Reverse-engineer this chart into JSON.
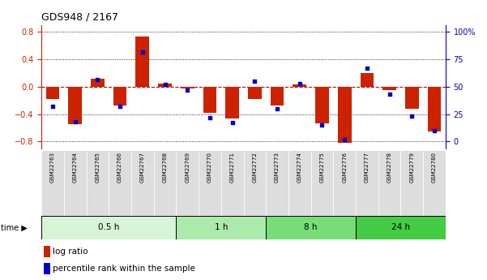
{
  "title": "GDS948 / 2167",
  "samples": [
    "GSM22763",
    "GSM22764",
    "GSM22765",
    "GSM22766",
    "GSM22767",
    "GSM22768",
    "GSM22769",
    "GSM22770",
    "GSM22771",
    "GSM22772",
    "GSM22773",
    "GSM22774",
    "GSM22775",
    "GSM22776",
    "GSM22777",
    "GSM22778",
    "GSM22779",
    "GSM22780"
  ],
  "log_ratio": [
    -0.18,
    -0.55,
    0.12,
    -0.27,
    0.73,
    0.05,
    -0.03,
    -0.38,
    -0.46,
    -0.18,
    -0.27,
    0.03,
    -0.53,
    -0.82,
    0.2,
    -0.05,
    -0.32,
    -0.65
  ],
  "percentile": [
    32,
    18,
    57,
    32,
    82,
    52,
    47,
    22,
    17,
    55,
    30,
    53,
    15,
    2,
    67,
    43,
    23,
    10
  ],
  "groups": [
    {
      "label": "0.5 h",
      "start": 0,
      "end": 6,
      "color": "#d6f5d6"
    },
    {
      "label": "1 h",
      "start": 6,
      "end": 10,
      "color": "#aaeaaa"
    },
    {
      "label": "8 h",
      "start": 10,
      "end": 14,
      "color": "#77dd77"
    },
    {
      "label": "24 h",
      "start": 14,
      "end": 18,
      "color": "#44cc44"
    }
  ],
  "bar_color": "#cc2200",
  "dot_color": "#0000cc",
  "ylim": [
    -0.9,
    0.9
  ],
  "yticks_left": [
    -0.8,
    -0.4,
    0.0,
    0.4,
    0.8
  ],
  "yticks_right": [
    0,
    25,
    50,
    75,
    100
  ],
  "hline_color": "#cc0000",
  "dot_grid_color": "#333333",
  "sample_box_color": "#dddddd",
  "background_color": "#ffffff"
}
